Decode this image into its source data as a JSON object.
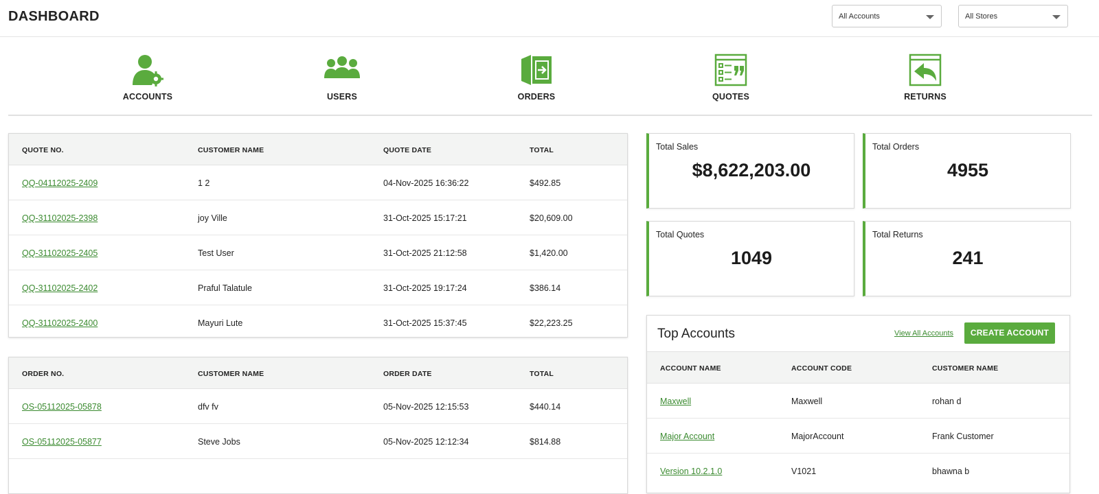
{
  "header": {
    "title": "DASHBOARD",
    "accounts_select": "All Accounts",
    "stores_select": "All Stores"
  },
  "quicknav": [
    {
      "label": "ACCOUNTS",
      "icon": "account-settings-icon"
    },
    {
      "label": "USERS",
      "icon": "users-icon"
    },
    {
      "label": "ORDERS",
      "icon": "orders-box-icon"
    },
    {
      "label": "QUOTES",
      "icon": "quotes-icon"
    },
    {
      "label": "RETURNS",
      "icon": "returns-icon"
    }
  ],
  "quotes_table": {
    "headers": [
      "QUOTE NO.",
      "CUSTOMER NAME",
      "QUOTE DATE",
      "TOTAL"
    ],
    "rows": [
      {
        "no": "QQ-04112025-2409",
        "customer": "1 2",
        "date": "04-Nov-2025 16:36:22",
        "total": "$492.85"
      },
      {
        "no": "QQ-31102025-2398",
        "customer": "joy Ville",
        "date": "31-Oct-2025 15:17:21",
        "total": "$20,609.00"
      },
      {
        "no": "QQ-31102025-2405",
        "customer": "Test User",
        "date": "31-Oct-2025 21:12:58",
        "total": "$1,420.00"
      },
      {
        "no": "QQ-31102025-2402",
        "customer": "Praful Talatule",
        "date": "31-Oct-2025 19:17:24",
        "total": "$386.14"
      },
      {
        "no": "QQ-31102025-2400",
        "customer": "Mayuri Lute",
        "date": "31-Oct-2025 15:37:45",
        "total": "$22,223.25"
      }
    ]
  },
  "orders_table": {
    "headers": [
      "ORDER NO.",
      "CUSTOMER NAME",
      "ORDER DATE",
      "TOTAL"
    ],
    "rows": [
      {
        "no": "OS-05112025-05878",
        "customer": "dfv fv",
        "date": "05-Nov-2025 12:15:53",
        "total": "$440.14"
      },
      {
        "no": "OS-05112025-05877",
        "customer": "Steve Jobs",
        "date": "05-Nov-2025 12:12:34",
        "total": "$814.88"
      }
    ]
  },
  "stats": {
    "total_sales": {
      "label": "Total Sales",
      "value": "$8,622,203.00"
    },
    "total_orders": {
      "label": "Total Orders",
      "value": "4955"
    },
    "total_quotes": {
      "label": "Total Quotes",
      "value": "1049"
    },
    "total_returns": {
      "label": "Total Returns",
      "value": "241"
    }
  },
  "top_accounts": {
    "title": "Top Accounts",
    "view_all": "View All Accounts",
    "create": "CREATE ACCOUNT",
    "headers": [
      "ACCOUNT NAME",
      "ACCOUNT CODE",
      "CUSTOMER NAME"
    ],
    "rows": [
      {
        "name": "Maxwell",
        "code": "Maxwell",
        "customer": "rohan d"
      },
      {
        "name": "Major Account",
        "code": "MajorAccount",
        "customer": "Frank Customer"
      },
      {
        "name": "Version 10.2.1.0",
        "code": "V1021",
        "customer": "bhawna b"
      }
    ]
  },
  "colors": {
    "accent": "#5aab3e",
    "link": "#3a8a2f"
  }
}
